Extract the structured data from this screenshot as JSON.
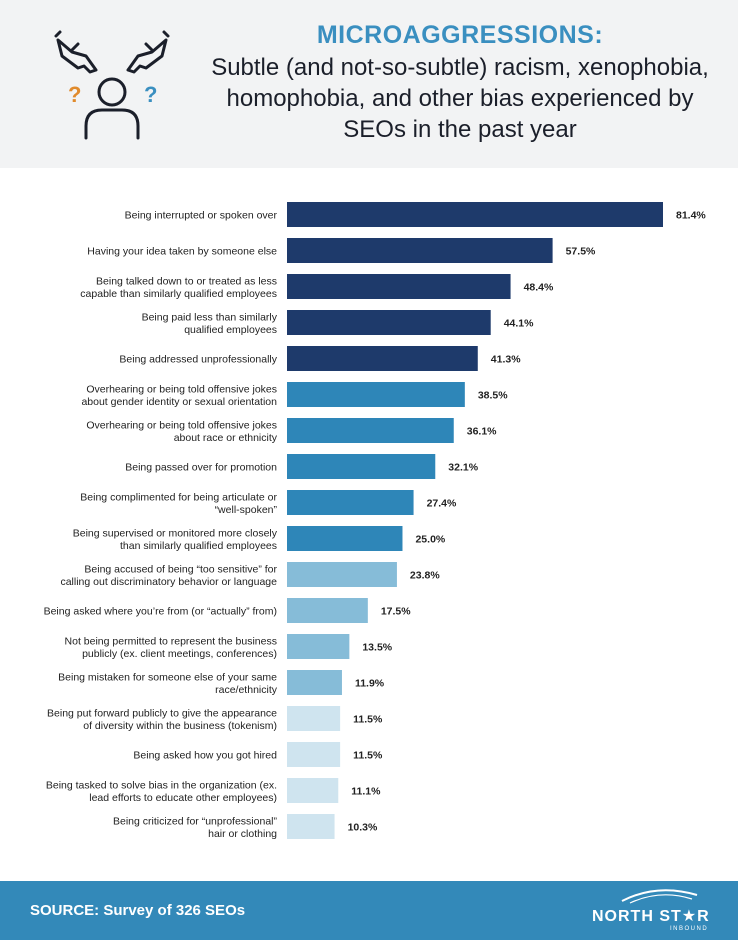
{
  "header": {
    "title_main": "MICROAGGRESSIONS:",
    "title_sub": "Subtle (and not-so-subtle) racism, xenophobia, homophobia, and other bias experienced by SEOs in the past year"
  },
  "chart_data": {
    "type": "bar",
    "orientation": "horizontal",
    "title": "",
    "xlabel": "",
    "ylabel": "",
    "xlim": [
      0,
      85
    ],
    "grid": false,
    "categories": [
      [
        "Being interrupted or spoken over"
      ],
      [
        "Having your idea taken by someone else"
      ],
      [
        "Being talked down to or treated as less",
        "capable than similarly qualified employees"
      ],
      [
        "Being paid less than similarly",
        "qualified employees"
      ],
      [
        "Being addressed unprofessionally"
      ],
      [
        "Overhearing or being told offensive jokes",
        "about gender identity or sexual orientation"
      ],
      [
        "Overhearing or being told offensive jokes",
        "about race or ethnicity"
      ],
      [
        "Being passed over for promotion"
      ],
      [
        "Being complimented for being articulate or",
        "“well-spoken”"
      ],
      [
        "Being supervised or monitored more closely",
        "than similarly qualified employees"
      ],
      [
        "Being accused of being “too sensitive” for",
        "calling out discriminatory behavior or language"
      ],
      [
        "Being asked where you’re from (or “actually” from)"
      ],
      [
        "Not being permitted to represent the business",
        "publicly (ex. client meetings, conferences)"
      ],
      [
        "Being mistaken for someone else of your same",
        "race/ethnicity"
      ],
      [
        "Being put forward publicly to give the appearance",
        "of diversity within the business (tokenism)"
      ],
      [
        "Being asked how you got hired"
      ],
      [
        "Being tasked to solve bias in the organization (ex.",
        "lead efforts to educate other employees)"
      ],
      [
        "Being criticized for “unprofessional”",
        "hair or clothing"
      ]
    ],
    "values": [
      81.4,
      57.5,
      48.4,
      44.1,
      41.3,
      38.5,
      36.1,
      32.1,
      27.4,
      25.0,
      23.8,
      17.5,
      13.5,
      11.9,
      11.5,
      11.5,
      11.1,
      10.3
    ],
    "value_labels": [
      "81.4%",
      "57.5%",
      "48.4%",
      "44.1%",
      "41.3%",
      "38.5%",
      "36.1%",
      "32.1%",
      "27.4%",
      "25.0%",
      "23.8%",
      "17.5%",
      "13.5%",
      "11.9%",
      "11.5%",
      "11.5%",
      "11.1%",
      "10.3%"
    ],
    "bar_colors": [
      "#1e3a6b",
      "#1e3a6b",
      "#1e3a6b",
      "#1e3a6b",
      "#1e3a6b",
      "#2e86b8",
      "#2e86b8",
      "#2e86b8",
      "#2e86b8",
      "#2e86b8",
      "#86bcd8",
      "#86bcd8",
      "#86bcd8",
      "#86bcd8",
      "#cfe4ef",
      "#cfe4ef",
      "#cfe4ef",
      "#cfe4ef"
    ]
  },
  "footer": {
    "source": "SOURCE: Survey of 326 SEOs",
    "logo_text": "NORTH ST★R",
    "logo_sub": "INBOUND"
  },
  "colors": {
    "accent": "#3a8fc0",
    "footer_bg": "#3389b9",
    "header_bg": "#f2f3f4"
  }
}
